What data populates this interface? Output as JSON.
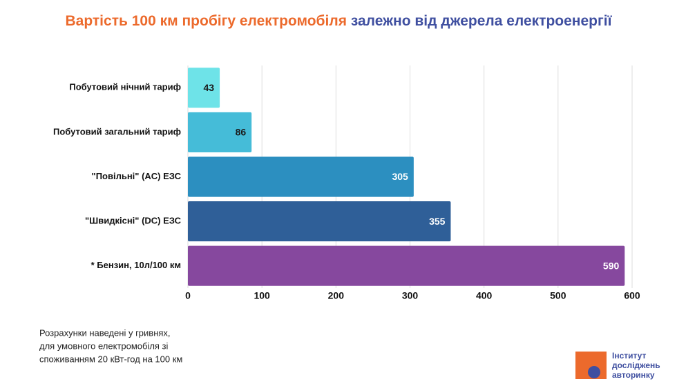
{
  "chart_data": {
    "type": "bar",
    "orientation": "horizontal",
    "title": [
      "Вартість 100 км пробігу електромобіля",
      "залежно від джерела електроенергії"
    ],
    "categories": [
      "Побутовий нічний тариф",
      "Побутовий загальний тариф",
      "\"Повільні\" (AC) ЕЗС",
      "\"Швидкісні\" (DC) ЕЗС",
      "* Бензин, 10л/100 км"
    ],
    "values": [
      43,
      86,
      305,
      355,
      590
    ],
    "colors": [
      "#6ee3e8",
      "#45bcd8",
      "#2c8fc0",
      "#2f5f98",
      "#86489e"
    ],
    "value_label_colors": [
      "#1a1a1a",
      "#1a1a1a",
      "#ffffff",
      "#ffffff",
      "#ffffff"
    ],
    "xlim": [
      0,
      600
    ],
    "xticks": [
      0,
      100,
      200,
      300,
      400,
      500,
      600
    ],
    "grid": true,
    "note": [
      "Розрахунки наведені у гривнях,",
      "для умовного електромобіля зі",
      "споживанням 20 кВт-год на 100 км"
    ],
    "logo": [
      "Інститут",
      "досліджень",
      "авторинку"
    ]
  }
}
